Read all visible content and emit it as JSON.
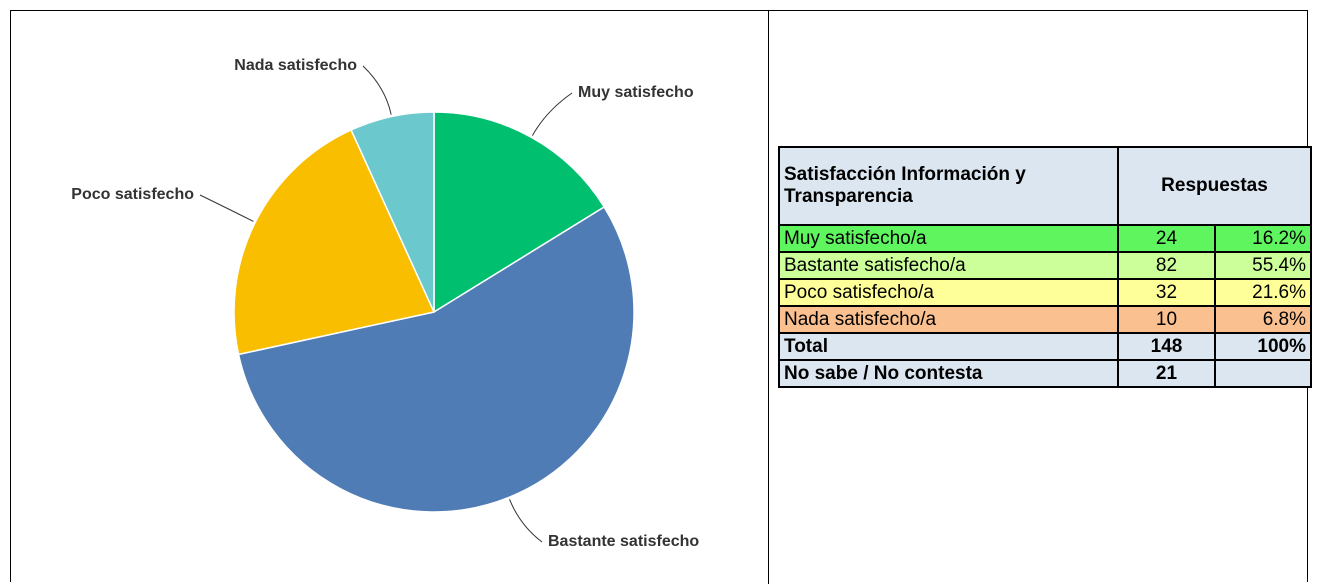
{
  "chart_data": {
    "type": "pie",
    "categories": [
      "Muy satisfecho",
      "Bastante satisfecho",
      "Poco satisfecho",
      "Nada satisfecho"
    ],
    "values": [
      16.2,
      55.4,
      21.6,
      6.8
    ],
    "colors": [
      "#00bf6f",
      "#507cb6",
      "#f9be00",
      "#6bc8cd"
    ]
  },
  "table": {
    "header": [
      "Satisfacción Información y Transparencia",
      "Respuestas"
    ],
    "rows": [
      [
        "Muy satisfecho/a",
        "24",
        "16.2%"
      ],
      [
        "Bastante satisfecho/a",
        "82",
        "55.4%"
      ],
      [
        "Poco satisfecho/a",
        "32",
        "21.6%"
      ],
      [
        "Nada satisfecho/a",
        "10",
        "6.8%"
      ],
      [
        "Total",
        "148",
        "100%"
      ],
      [
        "No sabe / No contesta",
        "21"
      ]
    ]
  }
}
